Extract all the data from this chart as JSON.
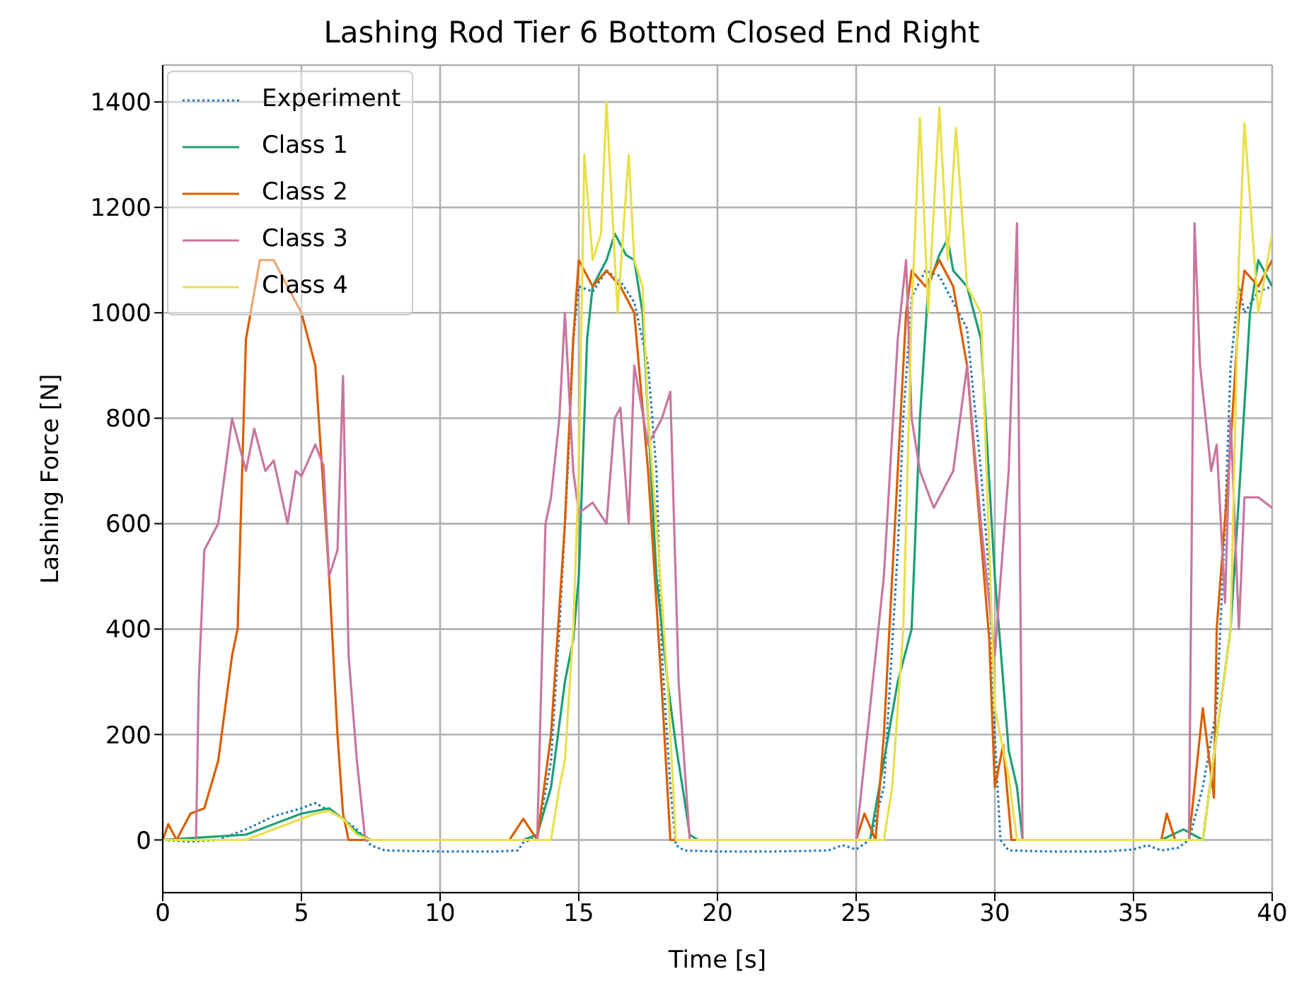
{
  "chart_data": {
    "type": "line",
    "title": "Lashing Rod Tier 6 Bottom Closed End Right",
    "xlabel": "Time [s]",
    "ylabel": "Lashing Force [N]",
    "xlim": [
      0,
      40
    ],
    "xticks": [
      0,
      5,
      10,
      15,
      20,
      25,
      30,
      35,
      40
    ],
    "ylim": [
      -100,
      1470
    ],
    "yticks": [
      0,
      200,
      400,
      600,
      800,
      1000,
      1200,
      1400
    ],
    "grid": true,
    "legend": "top left",
    "marker": "none",
    "series": [
      {
        "name": "Experiment",
        "color": "#1f77b4",
        "line_style": "dotted",
        "x": [
          0,
          1,
          2,
          3,
          4,
          5,
          5.5,
          6,
          6.5,
          7,
          7.5,
          8,
          10,
          12,
          12.8,
          13,
          13.5,
          14,
          14.3,
          14.6,
          14.8,
          15,
          15.5,
          16,
          16.5,
          17,
          17.5,
          17.8,
          18,
          18.3,
          18.5,
          18.8,
          20,
          22,
          24,
          24.5,
          25,
          25.5,
          26,
          26.5,
          26.7,
          27,
          27.5,
          28,
          28.5,
          29,
          29.5,
          29.8,
          30,
          30.2,
          30.5,
          32,
          34,
          35,
          35.5,
          36,
          36.6,
          37,
          37.5,
          38,
          38.3,
          38.5,
          38.8,
          39,
          39.5,
          40
        ],
        "values": [
          0,
          -3,
          0,
          20,
          45,
          60,
          70,
          55,
          40,
          20,
          -10,
          -20,
          -22,
          -22,
          -20,
          -5,
          5,
          150,
          400,
          700,
          950,
          1050,
          1040,
          1080,
          1060,
          1020,
          900,
          700,
          350,
          100,
          -10,
          -20,
          -22,
          -22,
          -20,
          -10,
          -18,
          0,
          100,
          550,
          800,
          1030,
          1080,
          1070,
          1020,
          970,
          700,
          500,
          200,
          0,
          -20,
          -22,
          -22,
          -18,
          -10,
          -20,
          -15,
          0,
          100,
          250,
          600,
          900,
          1050,
          1000,
          1040,
          1050
        ]
      },
      {
        "name": "Class 1",
        "color": "#1b9e77",
        "line_style": "solid",
        "x": [
          0,
          3,
          4,
          5,
          5.5,
          6,
          6.5,
          7,
          7.5,
          13,
          13.5,
          14,
          14.5,
          14.8,
          15,
          15.3,
          15.5,
          16,
          16.3,
          16.7,
          17,
          17.3,
          17.8,
          18.2,
          18.5,
          18.8,
          19,
          19.3,
          25,
          25.5,
          26,
          26.5,
          27,
          27.3,
          27.6,
          28,
          28.3,
          28.5,
          29,
          29.5,
          30,
          30.5,
          30.8,
          31,
          36,
          36.8,
          37.5,
          38,
          38.5,
          38.8,
          39.2,
          39.5,
          40
        ],
        "values": [
          0,
          10,
          30,
          50,
          55,
          60,
          40,
          15,
          0,
          0,
          10,
          100,
          300,
          380,
          500,
          950,
          1050,
          1100,
          1150,
          1110,
          1100,
          1000,
          500,
          300,
          180,
          80,
          10,
          0,
          0,
          0,
          150,
          300,
          400,
          800,
          1050,
          1110,
          1140,
          1080,
          1050,
          950,
          500,
          170,
          100,
          0,
          0,
          20,
          0,
          200,
          400,
          650,
          1000,
          1100,
          1050
        ]
      },
      {
        "name": "Class 2",
        "color": "#d95f02",
        "line_style": "solid",
        "x": [
          0,
          0.2,
          0.5,
          1,
          1.5,
          2,
          2.5,
          2.7,
          3,
          3.5,
          4,
          4.5,
          5,
          5.5,
          6,
          6.3,
          6.5,
          6.7,
          7,
          12.5,
          13,
          13.5,
          14,
          14.5,
          14.8,
          15,
          15.5,
          16,
          16.5,
          17,
          17.5,
          18,
          18.3,
          18.8,
          25,
          25.3,
          25.7,
          26,
          26.5,
          26.8,
          27,
          27.5,
          28,
          28.5,
          29,
          29.3,
          29.8,
          30,
          30.3,
          30.6,
          36,
          36.2,
          36.5,
          37,
          37.5,
          37.9,
          38,
          38.5,
          38.8,
          39,
          39.5,
          40
        ],
        "values": [
          0,
          30,
          0,
          50,
          60,
          150,
          350,
          400,
          950,
          1100,
          1100,
          1050,
          1000,
          900,
          500,
          200,
          50,
          0,
          0,
          0,
          40,
          0,
          200,
          600,
          950,
          1100,
          1050,
          1080,
          1050,
          1000,
          700,
          280,
          0,
          0,
          0,
          50,
          0,
          200,
          700,
          1000,
          1080,
          1050,
          1100,
          1050,
          900,
          700,
          380,
          100,
          180,
          0,
          0,
          50,
          0,
          0,
          250,
          80,
          400,
          750,
          1000,
          1080,
          1050,
          1100
        ]
      },
      {
        "name": "Class 3",
        "color": "#c8779f",
        "line_style": "solid",
        "x": [
          0,
          1.2,
          1.3,
          1.5,
          2,
          2.5,
          3,
          3.3,
          3.7,
          4,
          4.5,
          4.8,
          5,
          5.5,
          5.8,
          6,
          6.3,
          6.5,
          6.7,
          7,
          7.3,
          13.5,
          13.8,
          14,
          14.3,
          14.5,
          14.8,
          15,
          15.5,
          16,
          16.3,
          16.5,
          16.8,
          17,
          17.5,
          18,
          18.3,
          18.6,
          19,
          25,
          26,
          26.5,
          26.8,
          27,
          27.3,
          27.8,
          28,
          28.5,
          29,
          29.5,
          30,
          30.5,
          30.8,
          31,
          37,
          37.2,
          37.4,
          37.8,
          38,
          38.3,
          38.5,
          38.8,
          39,
          39.5,
          40
        ],
        "values": [
          0,
          0,
          300,
          550,
          600,
          800,
          700,
          780,
          700,
          720,
          600,
          700,
          690,
          750,
          710,
          500,
          550,
          880,
          350,
          150,
          0,
          0,
          600,
          650,
          800,
          1000,
          700,
          620,
          640,
          600,
          800,
          820,
          600,
          900,
          750,
          800,
          850,
          300,
          0,
          0,
          500,
          950,
          1100,
          800,
          700,
          630,
          650,
          700,
          900,
          600,
          350,
          700,
          1170,
          0,
          0,
          1170,
          900,
          700,
          750,
          450,
          800,
          400,
          650,
          650,
          630
        ]
      },
      {
        "name": "Class 4",
        "color": "#e8e04a",
        "line_style": "solid",
        "x": [
          0,
          3,
          4,
          5,
          5.5,
          6,
          6.5,
          7,
          7.5,
          14,
          14.3,
          14.5,
          14.8,
          15,
          15.2,
          15.5,
          15.8,
          16,
          16.4,
          16.8,
          17,
          17.3,
          17.5,
          17.8,
          18.2,
          18.5,
          19,
          26,
          26.3,
          26.7,
          27,
          27.3,
          27.6,
          28,
          28.3,
          28.6,
          29,
          29.5,
          30,
          30.5,
          30.8,
          37.5,
          38,
          38.5,
          38.8,
          39,
          39.5,
          40
        ],
        "values": [
          0,
          0,
          20,
          40,
          50,
          55,
          40,
          10,
          0,
          0,
          100,
          150,
          400,
          700,
          1300,
          1100,
          1150,
          1400,
          1000,
          1300,
          1100,
          1050,
          800,
          600,
          300,
          0,
          0,
          0,
          100,
          400,
          1000,
          1370,
          1000,
          1390,
          1100,
          1350,
          1050,
          1000,
          250,
          120,
          0,
          0,
          200,
          400,
          1100,
          1360,
          1000,
          1150
        ]
      }
    ]
  }
}
